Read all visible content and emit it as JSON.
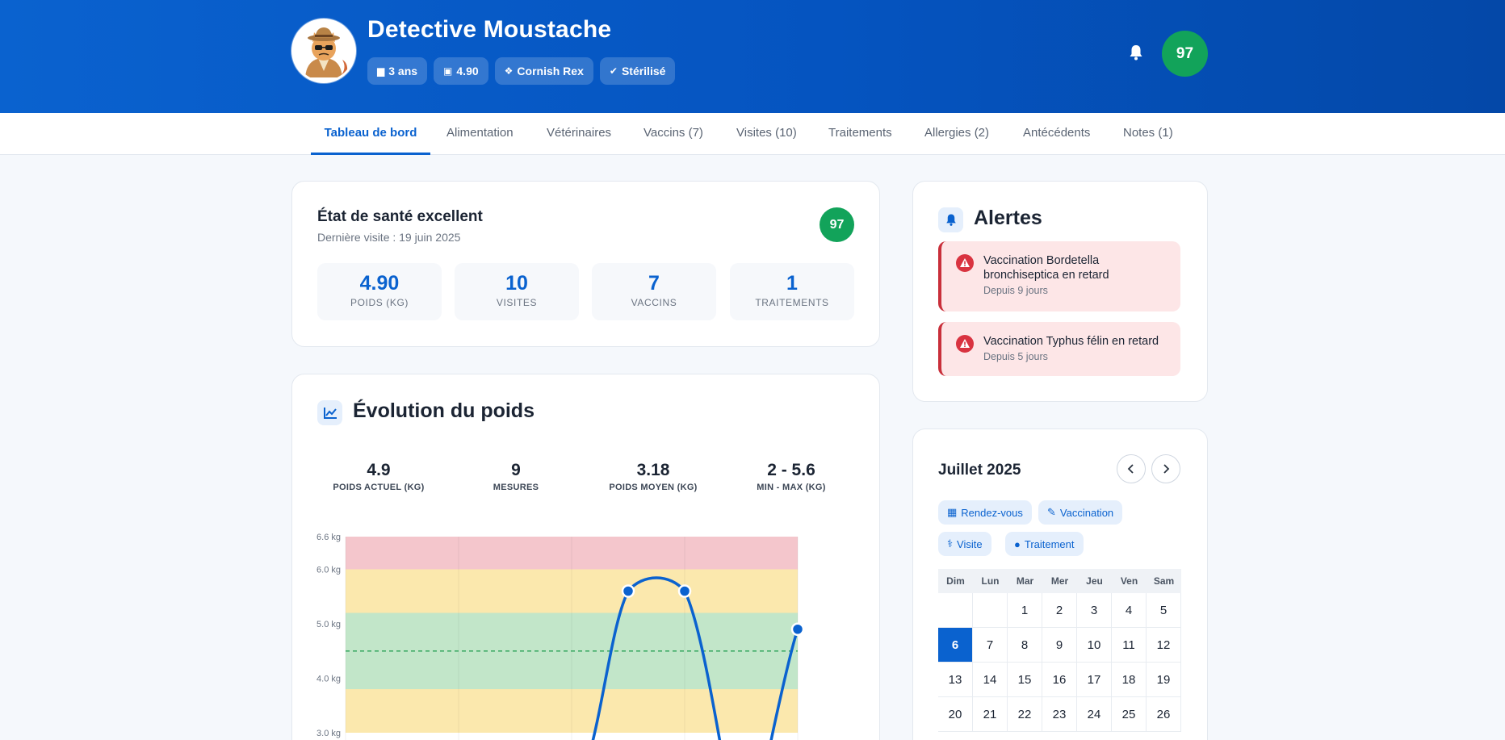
{
  "pet": {
    "name": "Detective Moustache",
    "chips": [
      {
        "icon": "age-icon",
        "label": "3 ans"
      },
      {
        "icon": "weight-icon",
        "label": "4.90"
      },
      {
        "icon": "paw-icon",
        "label": "Cornish Rex"
      },
      {
        "icon": "check-circle-icon",
        "label": "Stérilisé"
      }
    ],
    "score": "97"
  },
  "tabs": [
    {
      "label": "Tableau de bord",
      "active": true
    },
    {
      "label": "Alimentation"
    },
    {
      "label": "Vétérinaires"
    },
    {
      "label": "Vaccins (7)"
    },
    {
      "label": "Visites (10)"
    },
    {
      "label": "Traitements"
    },
    {
      "label": "Allergies (2)"
    },
    {
      "label": "Antécédents"
    },
    {
      "label": "Notes (1)"
    }
  ],
  "health": {
    "title": "État de santé excellent",
    "subtitle": "Dernière visite : 19 juin 2025",
    "score": "97",
    "stats": [
      {
        "value": "4.90",
        "label": "POIDS (KG)"
      },
      {
        "value": "10",
        "label": "VISITES"
      },
      {
        "value": "7",
        "label": "VACCINS"
      },
      {
        "value": "1",
        "label": "TRAITEMENTS"
      }
    ]
  },
  "weight": {
    "title": "Évolution du poids",
    "stats": [
      {
        "value": "4.9",
        "label": "POIDS ACTUEL (KG)"
      },
      {
        "value": "9",
        "label": "MESURES"
      },
      {
        "value": "3.18",
        "label": "POIDS MOYEN (KG)"
      },
      {
        "value": "2 - 5.6",
        "label": "MIN - MAX (KG)"
      }
    ]
  },
  "chart_data": {
    "type": "line",
    "y_ticks": [
      "6.6 kg",
      "6.0 kg",
      "5.0 kg",
      "4.0 kg",
      "3.0 kg"
    ],
    "y_tick_values": [
      6.6,
      6.0,
      5.0,
      4.0,
      3.0
    ],
    "ylim": [
      3.0,
      6.6
    ],
    "bands": [
      {
        "from": 6.0,
        "to": 6.6,
        "color": "#f4c6cc"
      },
      {
        "from": 5.2,
        "to": 6.0,
        "color": "#fbe8ad"
      },
      {
        "from": 3.8,
        "to": 5.2,
        "color": "#c2e6c9"
      },
      {
        "from": 3.0,
        "to": 3.8,
        "color": "#fbe8ad"
      }
    ],
    "reference_line": 4.5,
    "series": [
      {
        "visible_points": [
          {
            "x": 2.5,
            "y": 5.6
          },
          {
            "x": 3.0,
            "y": 5.6
          },
          {
            "x": 4.0,
            "y": 4.9
          }
        ]
      }
    ],
    "line_color": "#0a62cf"
  },
  "alerts": {
    "title": "Alertes",
    "items": [
      {
        "title": "Vaccination Bordetella bronchiseptica en retard",
        "since": "Depuis 9 jours"
      },
      {
        "title": "Vaccination Typhus félin en retard",
        "since": "Depuis 5 jours"
      }
    ]
  },
  "calendar": {
    "title": "Juillet 2025",
    "legend": [
      {
        "icon": "calendar-icon",
        "label": "Rendez-vous"
      },
      {
        "icon": "syringe-icon",
        "label": "Vaccination"
      },
      {
        "icon": "stethoscope-icon",
        "label": "Visite"
      },
      {
        "icon": "pills-icon",
        "label": "Traitement"
      }
    ],
    "weekdays": [
      "Dim",
      "Lun",
      "Mar",
      "Mer",
      "Jeu",
      "Ven",
      "Sam"
    ],
    "weeks": [
      [
        "",
        "",
        "1",
        "2",
        "3",
        "4",
        "5"
      ],
      [
        "6",
        "7",
        "8",
        "9",
        "10",
        "11",
        "12"
      ],
      [
        "13",
        "14",
        "15",
        "16",
        "17",
        "18",
        "19"
      ],
      [
        "20",
        "21",
        "22",
        "23",
        "24",
        "25",
        "26"
      ]
    ],
    "today": "6"
  }
}
